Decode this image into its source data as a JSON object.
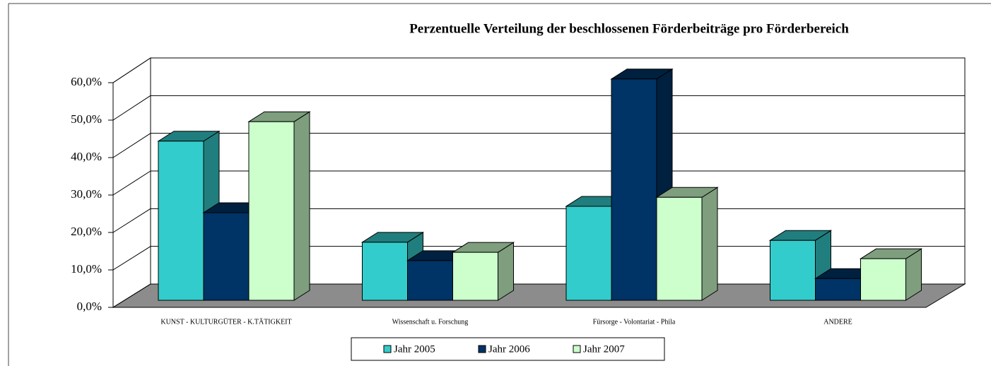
{
  "chart_data": {
    "type": "bar3d",
    "title": "Perzentuelle Verteilung der beschlossenen Förderbeiträge pro Förderbereich",
    "categories": [
      "KUNST - KULTURGÜTER - K.TÄTIGKEIT",
      "Wissenschaft u. Forschung",
      "Fürsorge - Volontariat - Phila",
      "ANDERE"
    ],
    "series": [
      {
        "name": "Jahr 2005",
        "color": "#33cccc",
        "values": [
          42.5,
          15.5,
          25.1,
          16.0
        ]
      },
      {
        "name": "Jahr 2006",
        "color": "#003366",
        "values": [
          23.4,
          10.6,
          59.1,
          5.8
        ]
      },
      {
        "name": "Jahr 2007",
        "color": "#ccffcc",
        "values": [
          47.7,
          12.8,
          27.5,
          11.1
        ]
      }
    ],
    "ylim": [
      0,
      60
    ],
    "yticks": [
      {
        "value": 0,
        "label": "0,0%"
      },
      {
        "value": 10,
        "label": "10,0%"
      },
      {
        "value": 20,
        "label": "20,0%"
      },
      {
        "value": 30,
        "label": "30,0%"
      },
      {
        "value": 40,
        "label": "40,0%"
      },
      {
        "value": 50,
        "label": "50,0%"
      },
      {
        "value": 60,
        "label": "60,0%"
      }
    ],
    "grid": true,
    "legend": "bottom"
  }
}
